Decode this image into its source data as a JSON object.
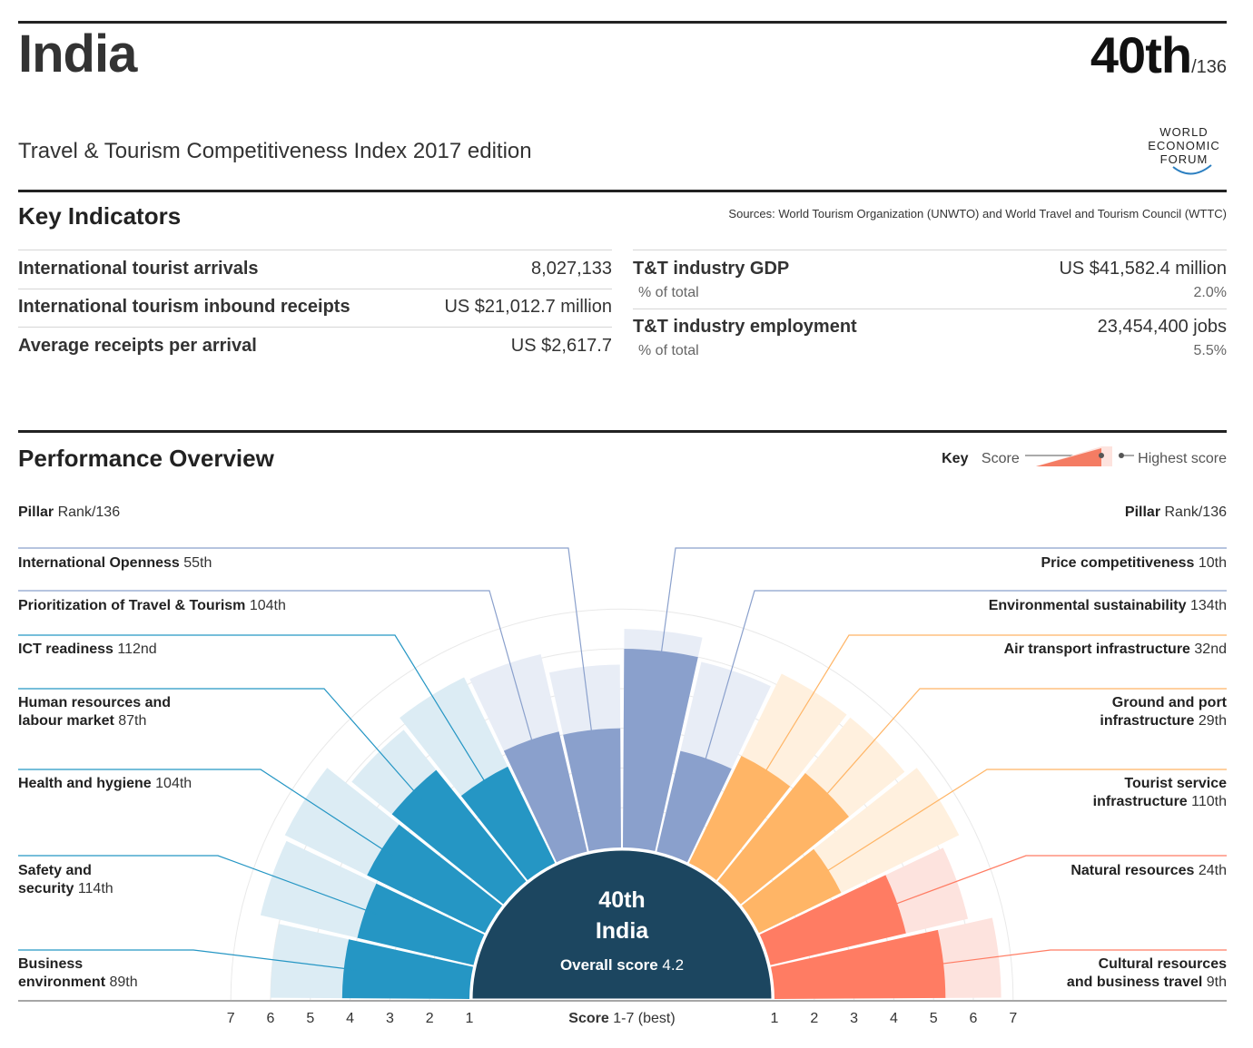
{
  "header": {
    "country": "India",
    "rank": "40th",
    "rank_total": "/136",
    "subtitle": "Travel & Tourism Competitiveness Index 2017 edition",
    "logo_lines": [
      "WORLD",
      "ECONOMIC",
      "FORUM"
    ]
  },
  "key_indicators": {
    "title": "Key Indicators",
    "sources": "Sources: World Tourism Organization (UNWTO) and World Travel and Tourism Council (WTTC)",
    "left": [
      {
        "label": "International tourist arrivals",
        "value": "8,027,133"
      },
      {
        "label": "International tourism inbound receipts",
        "value": "US $21,012.7 million"
      },
      {
        "label": "Average receipts per arrival",
        "value": "US $2,617.7"
      }
    ],
    "right": [
      {
        "label": "T&T industry GDP",
        "value": "US $41,582.4 million",
        "sub_label": "% of total",
        "sub_value": "2.0%"
      },
      {
        "label": "T&T industry employment",
        "value": "23,454,400 jobs",
        "sub_label": "% of total",
        "sub_value": "5.5%"
      }
    ]
  },
  "performance": {
    "title": "Performance Overview",
    "key_label": "Key",
    "key_score": "Score",
    "key_highest": "Highest score",
    "pillar_head_bold": "Pillar",
    "pillar_head_rest": "Rank/136",
    "center_rank": "40th",
    "center_country": "India",
    "center_score_label": "Overall score",
    "center_score_value": "4.2",
    "axis_label_bold": "Score",
    "axis_label_rest": "1-7 (best)",
    "ticks_left": [
      "7",
      "6",
      "5",
      "4",
      "3",
      "2",
      "1"
    ],
    "ticks_right": [
      "1",
      "2",
      "3",
      "4",
      "5",
      "6",
      "7"
    ]
  },
  "chart_data": {
    "type": "polar-bar",
    "score_range": [
      1,
      7
    ],
    "colors": {
      "blue": "#2596c4",
      "blue_light": "#dcecf4",
      "purple": "#8aa0cc",
      "purple_light": "#e8edf6",
      "orange": "#ffb566",
      "orange_light": "#fff0de",
      "red": "#ff7c63",
      "red_light": "#fde3de",
      "center": "#1c4660"
    },
    "pillars": [
      {
        "name": "Business",
        "name2": "environment",
        "rank": "89th",
        "score": 4.2,
        "best": 6.0,
        "group": "blue",
        "side": "left"
      },
      {
        "name": "Safety and",
        "name2": "security",
        "rank": "114th",
        "score": 4.0,
        "best": 6.5,
        "group": "blue",
        "side": "left"
      },
      {
        "name": "Health and hygiene",
        "name2": "",
        "rank": "104th",
        "score": 4.3,
        "best": 6.6,
        "group": "blue",
        "side": "left"
      },
      {
        "name": "Human resources and",
        "name2": "labour market",
        "rank": "87th",
        "score": 4.6,
        "best": 5.9,
        "group": "blue",
        "side": "left"
      },
      {
        "name": "ICT readiness",
        "name2": "",
        "rank": "112nd",
        "score": 3.7,
        "best": 6.2,
        "group": "blue",
        "side": "left"
      },
      {
        "name": "Prioritization of Travel & Tourism",
        "name2": "",
        "rank": "104th",
        "score": 4.1,
        "best": 6.1,
        "group": "purple",
        "side": "left"
      },
      {
        "name": "International Openness",
        "name2": "",
        "rank": "55th",
        "score": 4.0,
        "best": 5.6,
        "group": "purple",
        "side": "left"
      },
      {
        "name": "Price competitiveness",
        "name2": "",
        "rank": "10th",
        "score": 6.0,
        "best": 6.5,
        "group": "purple",
        "side": "right"
      },
      {
        "name": "Environmental sustainability",
        "name2": "",
        "rank": "134th",
        "score": 3.6,
        "best": 5.9,
        "group": "purple",
        "side": "right"
      },
      {
        "name": "Air transport infrastructure",
        "name2": "",
        "rank": "32nd",
        "score": 4.0,
        "best": 6.3,
        "group": "orange",
        "side": "right"
      },
      {
        "name": "Ground and port",
        "name2": "infrastructure",
        "rank": "29th",
        "score": 4.5,
        "best": 6.3,
        "group": "orange",
        "side": "right"
      },
      {
        "name": "Tourist service",
        "name2": "infrastructure",
        "rank": "110th",
        "score": 3.3,
        "best": 6.6,
        "group": "orange",
        "side": "right"
      },
      {
        "name": "Natural resources",
        "name2": "",
        "rank": "24th",
        "score": 4.5,
        "best": 6.1,
        "group": "red",
        "side": "right"
      },
      {
        "name": "Cultural resources",
        "name2": "and business travel",
        "rank": "9th",
        "score": 5.3,
        "best": 6.7,
        "group": "red",
        "side": "right"
      }
    ]
  }
}
